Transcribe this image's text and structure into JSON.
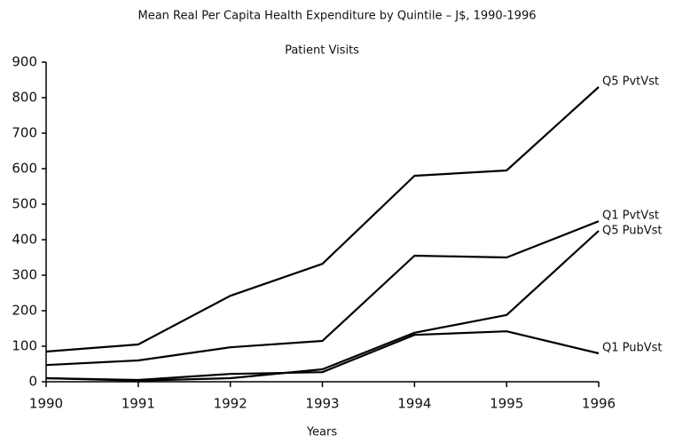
{
  "chart_data": {
    "type": "line",
    "title": "Mean Real Per Capita Health Expenditure by Quintile – J$, 1990-1996",
    "subtitle": "Patient Visits",
    "xlabel": "Years",
    "x": [
      1990,
      1991,
      1992,
      1993,
      1994,
      1995,
      1996
    ],
    "xlim": [
      1990,
      1996
    ],
    "xticks": [
      1990,
      1991,
      1992,
      1993,
      1994,
      1995,
      1996
    ],
    "ylim": [
      0,
      900
    ],
    "yticks": [
      0,
      100,
      200,
      300,
      400,
      500,
      600,
      700,
      800,
      900
    ],
    "grid": false,
    "series": [
      {
        "name": "Q5 PvtVst",
        "color": "#000000",
        "values": [
          85,
          105,
          242,
          332,
          580,
          595,
          830
        ]
      },
      {
        "name": "Q1 PvtVst",
        "color": "#000000",
        "values": [
          47,
          60,
          97,
          115,
          355,
          350,
          452
        ]
      },
      {
        "name": "Q5 PubVst",
        "color": "#000000",
        "values": [
          10,
          3,
          10,
          35,
          138,
          188,
          425
        ]
      },
      {
        "name": "Q1 PubVst",
        "color": "#000000",
        "values": [
          10,
          5,
          22,
          27,
          132,
          142,
          80
        ]
      }
    ]
  }
}
